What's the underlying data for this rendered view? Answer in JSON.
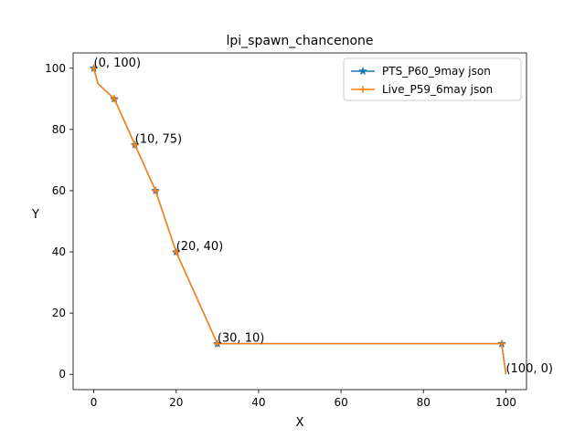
{
  "chart_data": {
    "type": "line",
    "title": "lpi_spawn_chancenone",
    "xlabel": "X",
    "ylabel": "Y",
    "xlim": [
      -5,
      105
    ],
    "ylim": [
      -5,
      105
    ],
    "xticks": [
      0,
      20,
      40,
      60,
      80,
      100
    ],
    "yticks": [
      0,
      20,
      40,
      60,
      80,
      100
    ],
    "grid": false,
    "legend_position": "upper right",
    "series": [
      {
        "name": "PTS_P60_9may json",
        "color": "#1f77b4",
        "marker": "star",
        "x": [
          0,
          1,
          5,
          10,
          15,
          20,
          30,
          99,
          100
        ],
        "y": [
          100,
          95,
          90,
          75,
          60,
          40,
          10,
          10,
          0
        ],
        "marker_x": [
          0,
          5,
          10,
          15,
          20,
          30,
          99
        ]
      },
      {
        "name": "Live_P59_6may json",
        "color": "#ff7f0e",
        "marker": "plus",
        "x": [
          0,
          1,
          5,
          10,
          15,
          20,
          30,
          99,
          100
        ],
        "y": [
          100,
          95,
          90,
          75,
          60,
          40,
          10,
          10,
          0
        ],
        "marker_x": [
          0,
          5,
          10,
          15,
          20,
          30,
          99
        ]
      }
    ],
    "annotations": [
      {
        "text": "(0, 100)",
        "x": 0,
        "y": 100
      },
      {
        "text": "(10, 75)",
        "x": 10,
        "y": 75
      },
      {
        "text": "(20, 40)",
        "x": 20,
        "y": 40
      },
      {
        "text": "(30, 10)",
        "x": 30,
        "y": 10
      },
      {
        "text": "(100, 0)",
        "x": 100,
        "y": 0
      }
    ]
  }
}
